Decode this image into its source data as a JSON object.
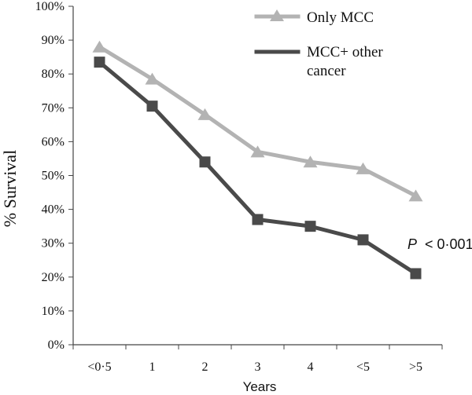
{
  "chart_data": {
    "type": "line",
    "categories": [
      "<0·5",
      "1",
      "2",
      "3",
      "4",
      "<5",
      ">5"
    ],
    "series": [
      {
        "name": "Only MCC",
        "values": [
          88,
          78.5,
          68,
          57,
          54,
          52,
          44
        ],
        "color": "#b3b3b3",
        "marker": "triangle"
      },
      {
        "name": "MCC+ other cancer",
        "values": [
          83.5,
          70.5,
          54,
          37,
          35,
          31,
          21
        ],
        "color": "#4a4a4a",
        "marker": "square"
      }
    ],
    "ylabel": "% Survival",
    "xlabel": "Years",
    "ylim": [
      0,
      100
    ],
    "yticks": [
      "0%",
      "10%",
      "20%",
      "30%",
      "40%",
      "50%",
      "60%",
      "70%",
      "80%",
      "90%",
      "100%"
    ],
    "legend_position": "top-right",
    "grid": false,
    "annotation": {
      "p_label": "P",
      "p_value_text": "< 0·001"
    }
  },
  "legend": {
    "series_1": "Only MCC",
    "series_2_line1": "MCC+ other",
    "series_2_line2": "cancer"
  }
}
